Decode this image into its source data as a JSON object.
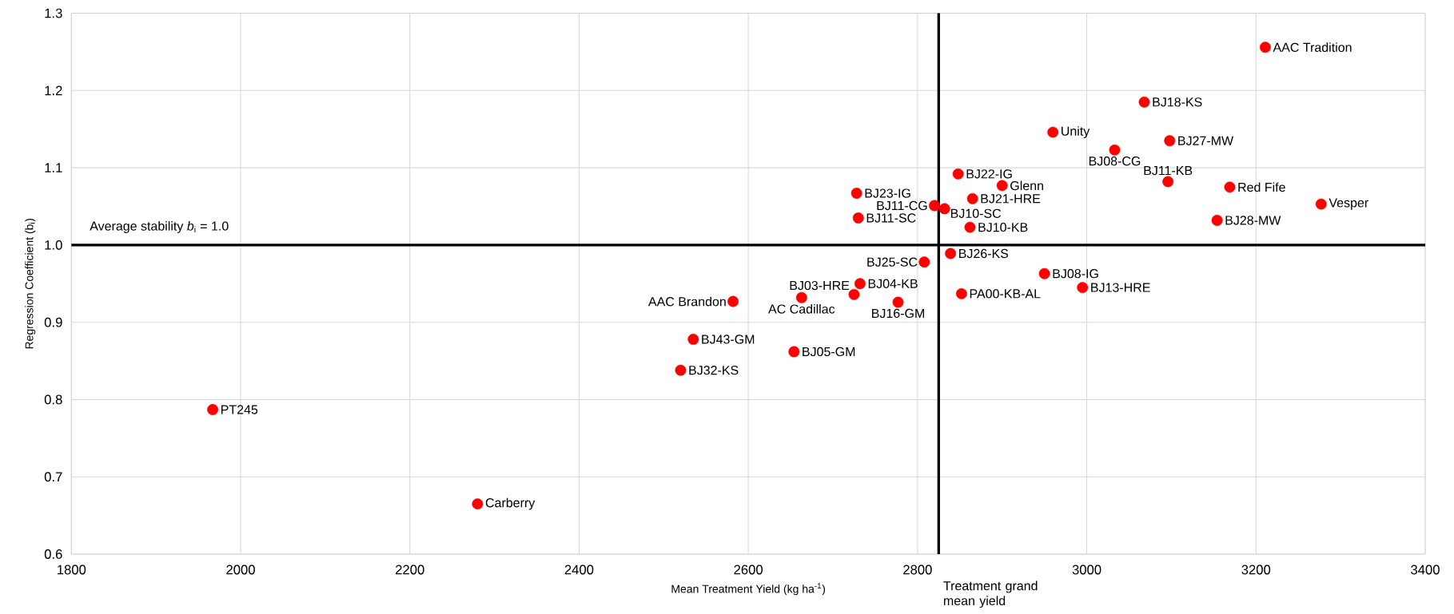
{
  "chart_data": {
    "type": "scatter",
    "xlabel": "Mean Treatment Yield (kg ha$^{-1}$)",
    "ylabel": "Regression Coefficient (b$_{i}$)",
    "xlim": [
      1800,
      3400
    ],
    "xticks": [
      1800,
      2000,
      2200,
      2400,
      2600,
      2800,
      3000,
      3200,
      3400
    ],
    "ylim": [
      0.6,
      1.3
    ],
    "yticks": [
      {
        "value": 0.6,
        "label": "0.6"
      },
      {
        "value": 0.7,
        "label": "0.7"
      },
      {
        "value": 0.8,
        "label": "0.8"
      },
      {
        "value": 0.9,
        "label": "0.9"
      },
      {
        "value": 1.0,
        "label": "1.0"
      },
      {
        "value": 1.1,
        "label": "1.1"
      },
      {
        "value": 1.2,
        "label": "1.2"
      },
      {
        "value": 1.3,
        "label": "1.3"
      }
    ],
    "grid": true,
    "marker": "circle",
    "ref_lines": [
      {
        "axis": "y",
        "value": 1.0,
        "label": "Average stability *b*$_{i}$ = 1.0",
        "color": "#000000"
      },
      {
        "axis": "x",
        "value": 2825,
        "label": "Treatment grand mean yield",
        "color": "#000000"
      }
    ],
    "series": [
      {
        "name": "AAC Tradition",
        "color": "#ff0000",
        "x": [
          3211
        ],
        "values": [
          1.256
        ]
      },
      {
        "name": "BJ18-KS",
        "color": "#ff0000",
        "x": [
          3068
        ],
        "values": [
          1.185
        ]
      },
      {
        "name": "Unity",
        "color": "#ff0000",
        "x": [
          2960
        ],
        "values": [
          1.146
        ]
      },
      {
        "name": "BJ27-MW",
        "color": "#ff0000",
        "x": [
          3098
        ],
        "values": [
          1.135
        ]
      },
      {
        "name": "BJ08-CG",
        "color": "#ff0000",
        "x": [
          3033
        ],
        "values": [
          1.123
        ]
      },
      {
        "name": "BJ11-KB",
        "color": "#ff0000",
        "x": [
          3096
        ],
        "values": [
          1.082
        ]
      },
      {
        "name": "Red Fife",
        "color": "#ff0000",
        "x": [
          3169
        ],
        "values": [
          1.075
        ]
      },
      {
        "name": "Vesper",
        "color": "#ff0000",
        "x": [
          3277
        ],
        "values": [
          1.053
        ]
      },
      {
        "name": "BJ28-MW",
        "color": "#ff0000",
        "x": [
          3154
        ],
        "values": [
          1.032
        ]
      },
      {
        "name": "BJ22-IG",
        "color": "#ff0000",
        "x": [
          2848
        ],
        "values": [
          1.092
        ]
      },
      {
        "name": "Glenn",
        "color": "#ff0000",
        "x": [
          2900
        ],
        "values": [
          1.077
        ]
      },
      {
        "name": "BJ23-IG",
        "color": "#ff0000",
        "x": [
          2728
        ],
        "values": [
          1.067
        ]
      },
      {
        "name": "BJ21-HRE",
        "color": "#ff0000",
        "x": [
          2865
        ],
        "values": [
          1.06
        ]
      },
      {
        "name": "BJ11-CG",
        "color": "#ff0000",
        "x": [
          2820
        ],
        "values": [
          1.051
        ]
      },
      {
        "name": "BJ10-SC",
        "color": "#ff0000",
        "x": [
          2832
        ],
        "values": [
          1.047
        ]
      },
      {
        "name": "BJ11-SC",
        "color": "#ff0000",
        "x": [
          2730
        ],
        "values": [
          1.035
        ]
      },
      {
        "name": "BJ10-KB",
        "color": "#ff0000",
        "x": [
          2862
        ],
        "values": [
          1.023
        ]
      },
      {
        "name": "BJ26-KS",
        "color": "#ff0000",
        "x": [
          2839
        ],
        "values": [
          0.989
        ]
      },
      {
        "name": "BJ25-SC",
        "color": "#ff0000",
        "x": [
          2808
        ],
        "values": [
          0.978
        ]
      },
      {
        "name": "BJ08-IG",
        "color": "#ff0000",
        "x": [
          2950
        ],
        "values": [
          0.963
        ]
      },
      {
        "name": "BJ13-HRE",
        "color": "#ff0000",
        "x": [
          2995
        ],
        "values": [
          0.945
        ]
      },
      {
        "name": "BJ04-KB",
        "color": "#ff0000",
        "x": [
          2732
        ],
        "values": [
          0.95
        ]
      },
      {
        "name": "PA00-KB-AL",
        "color": "#ff0000",
        "x": [
          2852
        ],
        "values": [
          0.937
        ]
      },
      {
        "name": "BJ03-HRE",
        "color": "#ff0000",
        "x": [
          2725
        ],
        "values": [
          0.936
        ]
      },
      {
        "name": "AC Cadillac",
        "color": "#ff0000",
        "x": [
          2663
        ],
        "values": [
          0.932
        ]
      },
      {
        "name": "AAC Brandon",
        "color": "#ff0000",
        "x": [
          2582
        ],
        "values": [
          0.927
        ]
      },
      {
        "name": "BJ16-GM",
        "color": "#ff0000",
        "x": [
          2777
        ],
        "values": [
          0.926
        ]
      },
      {
        "name": "BJ43-GM",
        "color": "#ff0000",
        "x": [
          2535
        ],
        "values": [
          0.878
        ]
      },
      {
        "name": "BJ05-GM",
        "color": "#ff0000",
        "x": [
          2654
        ],
        "values": [
          0.862
        ]
      },
      {
        "name": "BJ32-KS",
        "color": "#ff0000",
        "x": [
          2520
        ],
        "values": [
          0.838
        ]
      },
      {
        "name": "PT245",
        "color": "#ff0000",
        "x": [
          1967
        ],
        "values": [
          0.787
        ]
      },
      {
        "name": "Carberry",
        "color": "#ff0000",
        "x": [
          2280
        ],
        "values": [
          0.665
        ]
      }
    ]
  }
}
